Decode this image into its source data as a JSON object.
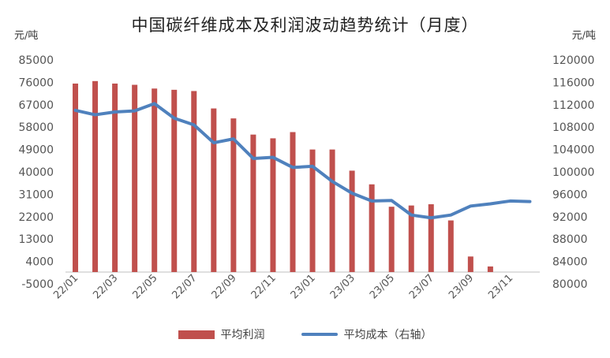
{
  "chart_data": {
    "type": "bar+line",
    "title": "中国碳纤维成本及利润波动趋势统计（月度）",
    "ylabel_left": "元/吨",
    "ylabel_right": "元/吨",
    "ylim_left": [
      -5000,
      85000
    ],
    "ylim_right": [
      80000,
      120000
    ],
    "yticks_left": [
      -5000,
      4000,
      13000,
      22000,
      31000,
      40000,
      49000,
      58000,
      67000,
      76000,
      85000
    ],
    "yticks_right": [
      80000,
      84000,
      88000,
      92000,
      96000,
      100000,
      104000,
      108000,
      112000,
      116000,
      120000
    ],
    "yticks_left_labels": [
      "-5000",
      "4000",
      "13000",
      "22000",
      "31000",
      "40000",
      "49000",
      "58000",
      "67000",
      "76000",
      "85000"
    ],
    "yticks_right_labels": [
      "80000",
      "84000",
      "88000",
      "92000",
      "96000",
      "100000",
      "104000",
      "108000",
      "112000",
      "116000",
      "120000"
    ],
    "categories": [
      "22/01",
      "22/02",
      "22/03",
      "22/04",
      "22/05",
      "22/06",
      "22/07",
      "22/08",
      "22/09",
      "22/10",
      "22/11",
      "22/12",
      "23/01",
      "23/02",
      "23/03",
      "23/04",
      "23/05",
      "23/06",
      "23/07",
      "23/08",
      "23/09",
      "23/10",
      "23/11",
      "23/12"
    ],
    "x_tick_labels": [
      "22/01",
      "22/03",
      "22/05",
      "22/07",
      "22/09",
      "22/11",
      "23/01",
      "23/03",
      "23/05",
      "23/07",
      "23/09",
      "23/11"
    ],
    "series": [
      {
        "name": "平均利润",
        "type": "bar",
        "axis": "left",
        "color": "#c0504d",
        "values": [
          75500,
          76500,
          75500,
          75000,
          73500,
          73000,
          72500,
          65500,
          61500,
          55000,
          53500,
          56000,
          49000,
          49000,
          40500,
          35000,
          26000,
          26500,
          27000,
          20500,
          6000,
          2000,
          null,
          null
        ]
      },
      {
        "name": "平均成本（右轴）",
        "type": "line",
        "axis": "right",
        "color": "#4f81bd",
        "values": [
          111000,
          110200,
          110700,
          110900,
          112200,
          109600,
          108400,
          105200,
          105900,
          102400,
          102600,
          100800,
          101000,
          98300,
          96200,
          94800,
          94900,
          92300,
          91800,
          92300,
          93900,
          94300,
          94800,
          94700
        ]
      }
    ],
    "legend_position": "bottom",
    "grid": false
  }
}
